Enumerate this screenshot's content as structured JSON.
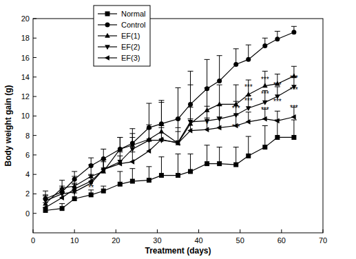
{
  "chart_data": {
    "type": "line",
    "x_label": "Treatment (days)",
    "y_label": "Body weight gain (g)",
    "xlim": [
      0,
      70
    ],
    "xticks": [
      0,
      10,
      20,
      30,
      40,
      50,
      60,
      70
    ],
    "ylim": [
      -2,
      20
    ],
    "yticks": [
      0,
      2,
      4,
      6,
      8,
      10,
      12,
      14,
      16,
      18,
      20
    ],
    "grid": false,
    "legend": "top-left",
    "x": [
      3,
      7,
      10,
      14,
      17,
      21,
      24,
      28,
      31,
      35,
      38,
      42,
      45,
      49,
      52,
      56,
      59,
      63
    ],
    "series": [
      {
        "name": "Normal",
        "color": "#000000",
        "marker": "square",
        "line_style": "solid",
        "values": [
          0.3,
          0.5,
          1.5,
          1.9,
          2.3,
          3.0,
          3.3,
          3.4,
          3.9,
          3.9,
          4.3,
          5.1,
          5.1,
          5.0,
          5.9,
          6.8,
          7.8,
          7.8
        ],
        "errors": [
          0.3,
          0.5,
          0.6,
          0.5,
          0.5,
          1.3,
          1.3,
          1.4,
          1.9,
          2.2,
          1.8,
          1.9,
          1.7,
          1.8,
          2.0,
          2.2,
          1.8,
          1.8
        ]
      },
      {
        "name": "Control",
        "color": "#000000",
        "marker": "circle",
        "line_style": "solid",
        "values": [
          1.5,
          2.2,
          3.5,
          4.9,
          5.6,
          6.6,
          7.2,
          8.8,
          9.2,
          9.7,
          11.2,
          12.8,
          13.6,
          15.3,
          15.8,
          17.2,
          17.9,
          18.6
        ],
        "errors": [
          0.8,
          0.6,
          0.8,
          0.8,
          1.0,
          1.2,
          1.5,
          2.5,
          2.4,
          3.2,
          3.4,
          3.0,
          2.6,
          1.6,
          1.5,
          0.8,
          0.8,
          0.6
        ]
      },
      {
        "name": "EF(1)",
        "color": "#000000",
        "marker": "triangle-up",
        "line_style": "solid",
        "values": [
          1.0,
          2.6,
          2.8,
          3.8,
          4.3,
          6.6,
          7.0,
          7.6,
          8.4,
          7.2,
          9.2,
          10.6,
          11.2,
          11.2,
          12.2,
          13.1,
          13.3,
          14.1
        ],
        "errors": [
          0.8,
          0.8,
          1.0,
          1.2,
          1.2,
          1.2,
          1.2,
          1.5,
          3.0,
          2.5,
          4.0,
          2.3,
          2.0,
          2.0,
          1.5,
          1.5,
          1.0,
          1.0
        ]
      },
      {
        "name": "EF(2)",
        "color": "#000000",
        "marker": "triangle-down",
        "line_style": "solid",
        "values": [
          1.3,
          2.0,
          2.2,
          3.1,
          4.5,
          5.3,
          6.6,
          7.5,
          7.5,
          7.3,
          9.4,
          9.5,
          9.7,
          10.1,
          10.8,
          11.4,
          12.0,
          13.0
        ],
        "errors": [
          0.6,
          0.6,
          0.8,
          0.8,
          1.0,
          1.0,
          1.2,
          1.2,
          1.5,
          1.5,
          1.5,
          1.5,
          1.4,
          1.4,
          1.3,
          1.2,
          1.0,
          1.0
        ]
      },
      {
        "name": "EF(3)",
        "color": "#000000",
        "marker": "triangle-left",
        "line_style": "solid",
        "values": [
          0.6,
          1.6,
          2.5,
          3.3,
          4.5,
          5.1,
          5.3,
          6.4,
          7.6,
          7.2,
          8.5,
          8.6,
          8.8,
          9.0,
          9.4,
          9.7,
          9.5,
          9.9
        ],
        "errors": [
          0.5,
          0.6,
          0.6,
          0.7,
          0.8,
          0.8,
          1.0,
          1.0,
          1.2,
          1.2,
          1.2,
          1.2,
          1.1,
          1.1,
          1.0,
          1.0,
          1.0,
          1.0
        ]
      }
    ],
    "annotations": [
      {
        "text": "**",
        "x": 14,
        "y": 2.4
      },
      {
        "text": "*",
        "x": 42,
        "y": 8.9
      },
      {
        "text": "*",
        "x": 45,
        "y": 8.3
      },
      {
        "text": "***",
        "x": 49,
        "y": 8.6
      },
      {
        "text": "***",
        "x": 49,
        "y": 10.5
      },
      {
        "text": "***",
        "x": 52,
        "y": 11.3
      },
      {
        "text": "***",
        "x": 52,
        "y": 12.7
      },
      {
        "text": "***",
        "x": 56,
        "y": 10.4
      },
      {
        "text": "***",
        "x": 56,
        "y": 12.0
      },
      {
        "text": "***",
        "x": 56,
        "y": 13.5
      },
      {
        "text": "***",
        "x": 59,
        "y": 11.2
      },
      {
        "text": "***",
        "x": 59,
        "y": 12.9
      },
      {
        "text": "***",
        "x": 63,
        "y": 10.6
      },
      {
        "text": "***",
        "x": 63,
        "y": 12.4
      },
      {
        "text": "***",
        "x": 63,
        "y": 13.6
      }
    ]
  }
}
